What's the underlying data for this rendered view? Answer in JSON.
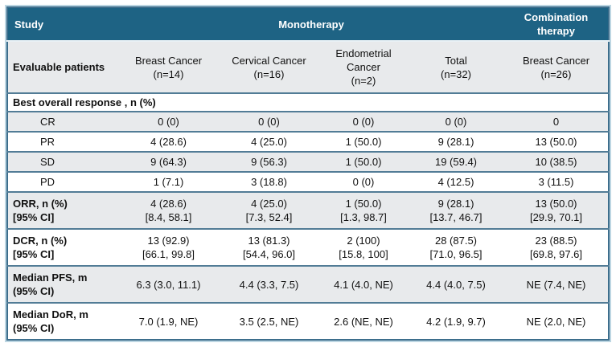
{
  "colors": {
    "header_bg": "#1e6384",
    "header_text": "#ffffff",
    "stripe_bg": "#e8eaec",
    "row_border": "#527c96",
    "outer_border": "#3d6e8c",
    "outer_glow": "#bdd6e2",
    "text": "#111111"
  },
  "table": {
    "top_header": {
      "study": "Study",
      "monotherapy": "Monotherapy",
      "combination_lines": [
        "Combination",
        "therapy"
      ]
    },
    "subheader": {
      "label": "Evaluable patients"
    },
    "columns": [
      {
        "key": "mono-breast",
        "group": "Monotherapy",
        "header_lines": [
          "Breast Cancer",
          "(n=14)"
        ]
      },
      {
        "key": "mono-cervical",
        "group": "Monotherapy",
        "header_lines": [
          "Cervical Cancer",
          "(n=16)"
        ]
      },
      {
        "key": "mono-endometrial",
        "group": "Monotherapy",
        "header_lines": [
          "Endometrial",
          "Cancer",
          "(n=2)"
        ]
      },
      {
        "key": "mono-total",
        "group": "Monotherapy",
        "header_lines": [
          "Total",
          "(n=32)"
        ]
      },
      {
        "key": "combo-breast",
        "group": "Combination therapy",
        "header_lines": [
          "Breast Cancer",
          "(n=26)"
        ]
      }
    ],
    "section_header": "Best overall response , n (%)",
    "rows": [
      {
        "key": "cr",
        "label_lines": [
          "CR"
        ],
        "bold": false,
        "indent": true,
        "shaded": true,
        "values": [
          [
            "0 (0)"
          ],
          [
            "0 (0)"
          ],
          [
            "0 (0)"
          ],
          [
            "0 (0)"
          ],
          [
            "0"
          ]
        ]
      },
      {
        "key": "pr",
        "label_lines": [
          "PR"
        ],
        "bold": false,
        "indent": true,
        "shaded": false,
        "values": [
          [
            "4 (28.6)"
          ],
          [
            "4 (25.0)"
          ],
          [
            "1 (50.0)"
          ],
          [
            "9 (28.1)"
          ],
          [
            "13 (50.0)"
          ]
        ]
      },
      {
        "key": "sd",
        "label_lines": [
          "SD"
        ],
        "bold": false,
        "indent": true,
        "shaded": true,
        "values": [
          [
            "9 (64.3)"
          ],
          [
            "9 (56.3)"
          ],
          [
            "1 (50.0)"
          ],
          [
            "19 (59.4)"
          ],
          [
            "10 (38.5)"
          ]
        ]
      },
      {
        "key": "pd",
        "label_lines": [
          "PD"
        ],
        "bold": false,
        "indent": true,
        "shaded": false,
        "values": [
          [
            "1 (7.1)"
          ],
          [
            "3 (18.8)"
          ],
          [
            "0 (0)"
          ],
          [
            "4 (12.5)"
          ],
          [
            "3 (11.5)"
          ]
        ]
      },
      {
        "key": "orr",
        "label_lines": [
          "ORR, n (%)",
          "[95% CI]"
        ],
        "bold": true,
        "indent": false,
        "shaded": true,
        "values": [
          [
            "4 (28.6)",
            "[8.4, 58.1]"
          ],
          [
            "4 (25.0)",
            "[7.3, 52.4]"
          ],
          [
            "1 (50.0)",
            "[1.3, 98.7]"
          ],
          [
            "9 (28.1)",
            "[13.7, 46.7]"
          ],
          [
            "13 (50.0)",
            "[29.9, 70.1]"
          ]
        ]
      },
      {
        "key": "dcr",
        "label_lines": [
          "DCR, n (%)",
          "[95% CI]"
        ],
        "bold": true,
        "indent": false,
        "shaded": false,
        "values": [
          [
            "13 (92.9)",
            "[66.1, 99.8]"
          ],
          [
            "13 (81.3)",
            "[54.4, 96.0]"
          ],
          [
            "2 (100)",
            "[15.8, 100]"
          ],
          [
            "28 (87.5)",
            "[71.0, 96.5]"
          ],
          [
            "23 (88.5)",
            "[69.8, 97.6]"
          ]
        ]
      },
      {
        "key": "median-pfs",
        "label_lines": [
          "Median PFS, m",
          "(95% CI)"
        ],
        "bold": true,
        "indent": false,
        "shaded": true,
        "values": [
          [
            "6.3 (3.0, 11.1)"
          ],
          [
            "4.4 (3.3, 7.5)"
          ],
          [
            "4.1 (4.0, NE)"
          ],
          [
            "4.4 (4.0, 7.5)"
          ],
          [
            "NE (7.4, NE)"
          ]
        ]
      },
      {
        "key": "median-dor",
        "label_lines": [
          "Median DoR, m",
          "(95% CI)"
        ],
        "bold": true,
        "indent": false,
        "shaded": false,
        "values": [
          [
            "7.0 (1.9, NE)"
          ],
          [
            "3.5 (2.5, NE)"
          ],
          [
            "2.6 (NE, NE)"
          ],
          [
            "4.2 (1.9, 9.7)"
          ],
          [
            "NE (2.0, NE)"
          ]
        ]
      }
    ]
  }
}
